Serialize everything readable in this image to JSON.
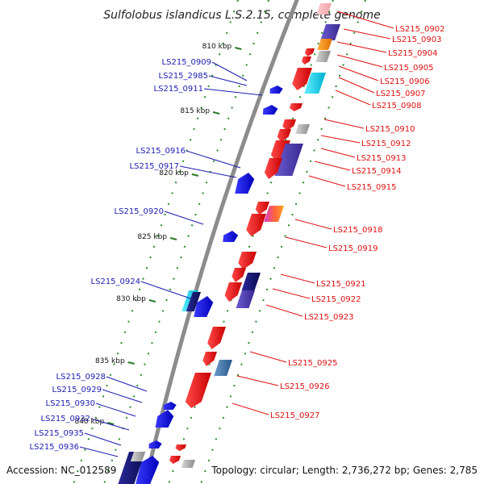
{
  "title": "Sulfolobus islandicus L.S.2.15, complete genome",
  "accession": "Accession: NC_012589",
  "topology": "Topology: circular; Length: 2,736,272 bp; Genes: 2,785",
  "colors": {
    "forward_label": "#e01010",
    "reverse_label": "#1c1cb0",
    "backbone": "#8c8c8c",
    "tick": "#2a7a2a"
  },
  "ticks": [
    {
      "label": "810 kbp"
    },
    {
      "label": "815 kbp"
    },
    {
      "label": "820 kbp"
    },
    {
      "label": "825 kbp"
    },
    {
      "label": "830 kbp"
    },
    {
      "label": "835 kbp"
    },
    {
      "label": "840 kbp"
    }
  ],
  "reverse_genes": [
    {
      "label": "LS215_0909"
    },
    {
      "label": "LS215_2985"
    },
    {
      "label": "LS215_0911"
    },
    {
      "label": "LS215_0916"
    },
    {
      "label": "LS215_0917"
    },
    {
      "label": "LS215_0920"
    },
    {
      "label": "LS215_0924"
    },
    {
      "label": "LS215_0928"
    },
    {
      "label": "LS215_0929"
    },
    {
      "label": "LS215_0930"
    },
    {
      "label": "LS215_0932"
    },
    {
      "label": "LS215_0935"
    },
    {
      "label": "LS215_0936"
    }
  ],
  "forward_genes": [
    {
      "label": "LS215_0902"
    },
    {
      "label": "LS215_0903"
    },
    {
      "label": "LS215_0904"
    },
    {
      "label": "LS215_0905"
    },
    {
      "label": "LS215_0906"
    },
    {
      "label": "LS215_0907"
    },
    {
      "label": "LS215_0908"
    },
    {
      "label": "LS215_0910"
    },
    {
      "label": "LS215_0912"
    },
    {
      "label": "LS215_0913"
    },
    {
      "label": "LS215_0914"
    },
    {
      "label": "LS215_0915"
    },
    {
      "label": "LS215_0918"
    },
    {
      "label": "LS215_0919"
    },
    {
      "label": "LS215_0921"
    },
    {
      "label": "LS215_0922"
    },
    {
      "label": "LS215_0923"
    },
    {
      "label": "LS215_0925"
    },
    {
      "label": "LS215_0926"
    },
    {
      "label": "LS215_0927"
    }
  ]
}
